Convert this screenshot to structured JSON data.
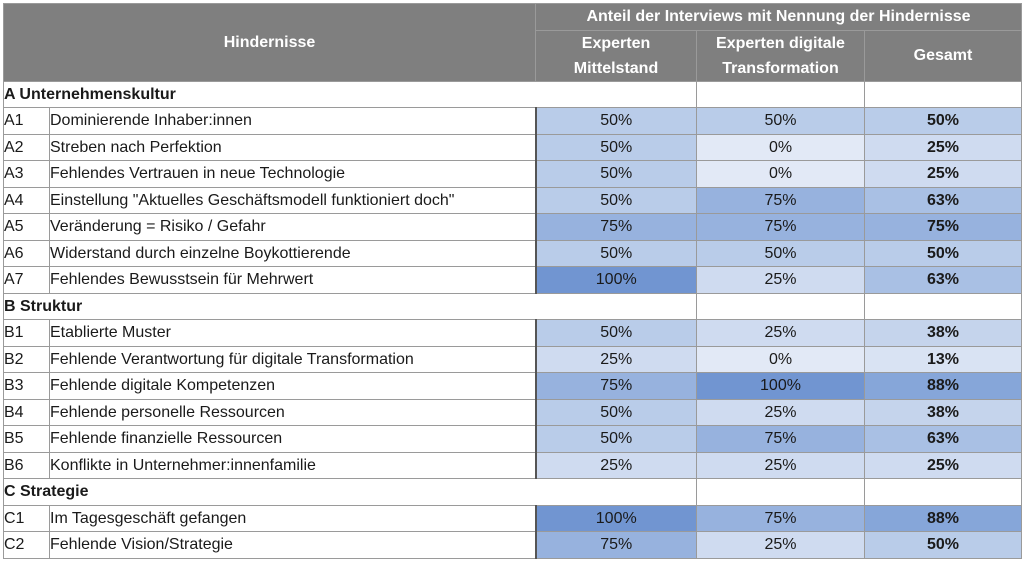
{
  "header": {
    "hindernisse": "Hindernisse",
    "anteil": "Anteil der Interviews mit Nennung der Hindernisse",
    "col_mittelstand_1": "Experten",
    "col_mittelstand_2": "Mittelstand",
    "col_digital_1": "Experten digitale",
    "col_digital_2": "Transformation",
    "col_gesamt": "Gesamt"
  },
  "colors": {
    "0": "#e2e9f6",
    "25": "#cfdbf0",
    "50": "#b9cce9",
    "75": "#97b2de",
    "100": "#7195d1",
    "13": "#d9e3f3",
    "38": "#c5d4ec",
    "63": "#a9c0e4",
    "88": "#86a6d9"
  },
  "chart_data": {
    "type": "table",
    "columns": [
      "Experten Mittelstand",
      "Experten digitale Transformation",
      "Gesamt"
    ],
    "groups": [
      {
        "title": "A Unternehmenskultur",
        "rows": [
          {
            "code": "A1",
            "label": "Dominierende Inhaber:innen",
            "mittelstand": "50%",
            "digital": "50%",
            "gesamt": "50%",
            "v": [
              50,
              50,
              50
            ]
          },
          {
            "code": "A2",
            "label": "Streben nach Perfektion",
            "mittelstand": "50%",
            "digital": "0%",
            "gesamt": "25%",
            "v": [
              50,
              0,
              25
            ]
          },
          {
            "code": "A3",
            "label": "Fehlendes Vertrauen in neue Technologie",
            "mittelstand": "50%",
            "digital": "0%",
            "gesamt": "25%",
            "v": [
              50,
              0,
              25
            ]
          },
          {
            "code": "A4",
            "label": "Einstellung \"Aktuelles Geschäftsmodell funktioniert doch\"",
            "mittelstand": "50%",
            "digital": "75%",
            "gesamt": "63%",
            "v": [
              50,
              75,
              63
            ]
          },
          {
            "code": "A5",
            "label": "Veränderung = Risiko / Gefahr",
            "mittelstand": "75%",
            "digital": "75%",
            "gesamt": "75%",
            "v": [
              75,
              75,
              75
            ]
          },
          {
            "code": "A6",
            "label": "Widerstand durch einzelne Boykottierende",
            "mittelstand": "50%",
            "digital": "50%",
            "gesamt": "50%",
            "v": [
              50,
              50,
              50
            ]
          },
          {
            "code": "A7",
            "label": "Fehlendes Bewusstsein für Mehrwert",
            "mittelstand": "100%",
            "digital": "25%",
            "gesamt": "63%",
            "v": [
              100,
              25,
              63
            ]
          }
        ]
      },
      {
        "title": "B Struktur",
        "rows": [
          {
            "code": "B1",
            "label": "Etablierte Muster",
            "mittelstand": "50%",
            "digital": "25%",
            "gesamt": "38%",
            "v": [
              50,
              25,
              38
            ]
          },
          {
            "code": "B2",
            "label": "Fehlende Verantwortung für digitale Transformation",
            "mittelstand": "25%",
            "digital": "0%",
            "gesamt": "13%",
            "v": [
              25,
              0,
              13
            ]
          },
          {
            "code": "B3",
            "label": "Fehlende digitale Kompetenzen",
            "mittelstand": "75%",
            "digital": "100%",
            "gesamt": "88%",
            "v": [
              75,
              100,
              88
            ]
          },
          {
            "code": "B4",
            "label": "Fehlende personelle Ressourcen",
            "mittelstand": "50%",
            "digital": "25%",
            "gesamt": "38%",
            "v": [
              50,
              25,
              38
            ]
          },
          {
            "code": "B5",
            "label": "Fehlende finanzielle Ressourcen",
            "mittelstand": "50%",
            "digital": "75%",
            "gesamt": "63%",
            "v": [
              50,
              75,
              63
            ]
          },
          {
            "code": "B6",
            "label": "Konflikte in Unternehmer:innenfamilie",
            "mittelstand": "25%",
            "digital": "25%",
            "gesamt": "25%",
            "v": [
              25,
              25,
              25
            ]
          }
        ]
      },
      {
        "title": "C Strategie",
        "rows": [
          {
            "code": "C1",
            "label": "Im Tagesgeschäft gefangen",
            "mittelstand": "100%",
            "digital": "75%",
            "gesamt": "88%",
            "v": [
              100,
              75,
              88
            ]
          },
          {
            "code": "C2",
            "label": "Fehlende Vision/Strategie",
            "mittelstand": "75%",
            "digital": "25%",
            "gesamt": "50%",
            "v": [
              75,
              25,
              50
            ]
          }
        ]
      }
    ]
  }
}
